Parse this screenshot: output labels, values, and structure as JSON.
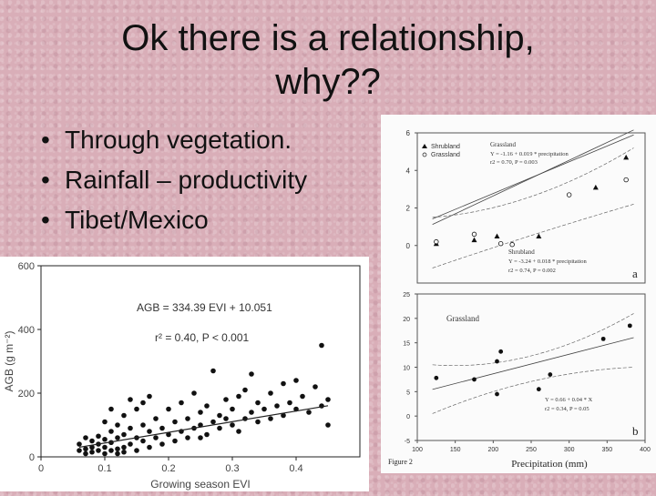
{
  "slide": {
    "title_line1": "Ok there is a relationship,",
    "title_line2": "why??",
    "bullets": [
      "Through vegetation.",
      "Rainfall – productivity",
      "Tibet/Mexico"
    ]
  },
  "chart_data": [
    {
      "type": "scatter",
      "xlabel": "Growing season EVI",
      "ylabel": "AGB (g m⁻²)",
      "xlim": [
        0,
        0.5
      ],
      "ylim": [
        0,
        600
      ],
      "xticks": [
        "0",
        "0.1",
        "0.2",
        "0.3",
        "0.4"
      ],
      "yticks": [
        "0",
        "200",
        "400",
        "600"
      ],
      "annotations": [
        "AGB = 334.39 EVI + 10.051",
        "r² = 0.40, P < 0.001"
      ],
      "regression": {
        "slope": 334.39,
        "intercept": 10.051,
        "x_range": [
          0.06,
          0.45
        ]
      },
      "points": [
        [
          0.06,
          20
        ],
        [
          0.06,
          40
        ],
        [
          0.07,
          10
        ],
        [
          0.07,
          25
        ],
        [
          0.07,
          60
        ],
        [
          0.08,
          15
        ],
        [
          0.08,
          30
        ],
        [
          0.08,
          50
        ],
        [
          0.09,
          20
        ],
        [
          0.09,
          40
        ],
        [
          0.1,
          10
        ],
        [
          0.1,
          30
        ],
        [
          0.1,
          55
        ],
        [
          0.1,
          110
        ],
        [
          0.11,
          20
        ],
        [
          0.11,
          45
        ],
        [
          0.11,
          80
        ],
        [
          0.12,
          25
        ],
        [
          0.12,
          60
        ],
        [
          0.12,
          100
        ],
        [
          0.13,
          30
        ],
        [
          0.13,
          70
        ],
        [
          0.13,
          130
        ],
        [
          0.14,
          40
        ],
        [
          0.14,
          90
        ],
        [
          0.15,
          20
        ],
        [
          0.15,
          60
        ],
        [
          0.15,
          150
        ],
        [
          0.16,
          50
        ],
        [
          0.16,
          100
        ],
        [
          0.17,
          30
        ],
        [
          0.17,
          80
        ],
        [
          0.17,
          190
        ],
        [
          0.18,
          60
        ],
        [
          0.18,
          120
        ],
        [
          0.19,
          40
        ],
        [
          0.19,
          90
        ],
        [
          0.2,
          70
        ],
        [
          0.2,
          150
        ],
        [
          0.21,
          50
        ],
        [
          0.21,
          110
        ],
        [
          0.22,
          80
        ],
        [
          0.22,
          170
        ],
        [
          0.23,
          60
        ],
        [
          0.23,
          120
        ],
        [
          0.24,
          90
        ],
        [
          0.24,
          200
        ],
        [
          0.25,
          100
        ],
        [
          0.25,
          140
        ],
        [
          0.26,
          70
        ],
        [
          0.26,
          160
        ],
        [
          0.27,
          110
        ],
        [
          0.27,
          270
        ],
        [
          0.28,
          90
        ],
        [
          0.28,
          130
        ],
        [
          0.29,
          120
        ],
        [
          0.29,
          180
        ],
        [
          0.3,
          100
        ],
        [
          0.3,
          150
        ],
        [
          0.31,
          80
        ],
        [
          0.31,
          190
        ],
        [
          0.32,
          120
        ],
        [
          0.32,
          210
        ],
        [
          0.33,
          140
        ],
        [
          0.33,
          260
        ],
        [
          0.34,
          110
        ],
        [
          0.34,
          170
        ],
        [
          0.35,
          150
        ],
        [
          0.36,
          120
        ],
        [
          0.36,
          200
        ],
        [
          0.37,
          160
        ],
        [
          0.38,
          130
        ],
        [
          0.38,
          230
        ],
        [
          0.39,
          170
        ],
        [
          0.4,
          150
        ],
        [
          0.4,
          240
        ],
        [
          0.41,
          190
        ],
        [
          0.42,
          140
        ],
        [
          0.43,
          220
        ],
        [
          0.44,
          350
        ],
        [
          0.44,
          160
        ],
        [
          0.45,
          180
        ],
        [
          0.45,
          100
        ],
        [
          0.12,
          10
        ],
        [
          0.13,
          15
        ],
        [
          0.09,
          65
        ],
        [
          0.11,
          150
        ],
        [
          0.14,
          180
        ],
        [
          0.16,
          170
        ],
        [
          0.25,
          60
        ]
      ]
    },
    {
      "type": "scatter",
      "panels": [
        {
          "label": "a",
          "ylim": [
            -2,
            6
          ],
          "yticks": [
            "0",
            "2",
            "4",
            "6"
          ],
          "legend": [
            "Shrubland",
            "Grassland"
          ],
          "series": [
            {
              "name": "Shrubland",
              "marker": "triangle",
              "points": [
                [
                  125,
                  0.1
                ],
                [
                  175,
                  0.3
                ],
                [
                  205,
                  0.5
                ],
                [
                  260,
                  0.5
                ],
                [
                  335,
                  3.1
                ],
                [
                  375,
                  4.7
                ]
              ]
            },
            {
              "name": "Grassland",
              "marker": "circle",
              "points": [
                [
                  125,
                  0.2
                ],
                [
                  175,
                  0.6
                ],
                [
                  210,
                  0.1
                ],
                [
                  225,
                  0.05
                ],
                [
                  300,
                  2.7
                ],
                [
                  375,
                  3.5
                ]
              ]
            }
          ],
          "annotations": [
            "Grassland",
            "Y = -1.16 + 0.019 * precipitation",
            "r2 = 0.70, P = 0.003",
            "Shrubland",
            "Y = -3.24 + 0.018 * precipitation",
            "r2 = 0.74, P = 0.002"
          ]
        },
        {
          "label": "b",
          "ylim": [
            -5,
            25
          ],
          "yticks": [
            "-5",
            "0",
            "5",
            "10",
            "15",
            "20",
            "25"
          ],
          "title": "Grassland",
          "series": [
            {
              "name": "Grassland",
              "marker": "circle",
              "points": [
                [
                  125,
                  7.8
                ],
                [
                  175,
                  7.5
                ],
                [
                  205,
                  4.5
                ],
                [
                  205,
                  11.2
                ],
                [
                  210,
                  13.2
                ],
                [
                  260,
                  5.5
                ],
                [
                  275,
                  8.5
                ],
                [
                  345,
                  15.8
                ],
                [
                  380,
                  18.5
                ]
              ]
            }
          ],
          "annotations": [
            "Y = 0.66 + 0.04 * X",
            "r2 = 0.34, P = 0.05"
          ]
        }
      ],
      "xlabel": "Precipitation (mm)",
      "xlim": [
        100,
        400
      ],
      "xticks": [
        "100",
        "150",
        "200",
        "250",
        "300",
        "350",
        "400"
      ],
      "caption": "Figure 2"
    }
  ]
}
